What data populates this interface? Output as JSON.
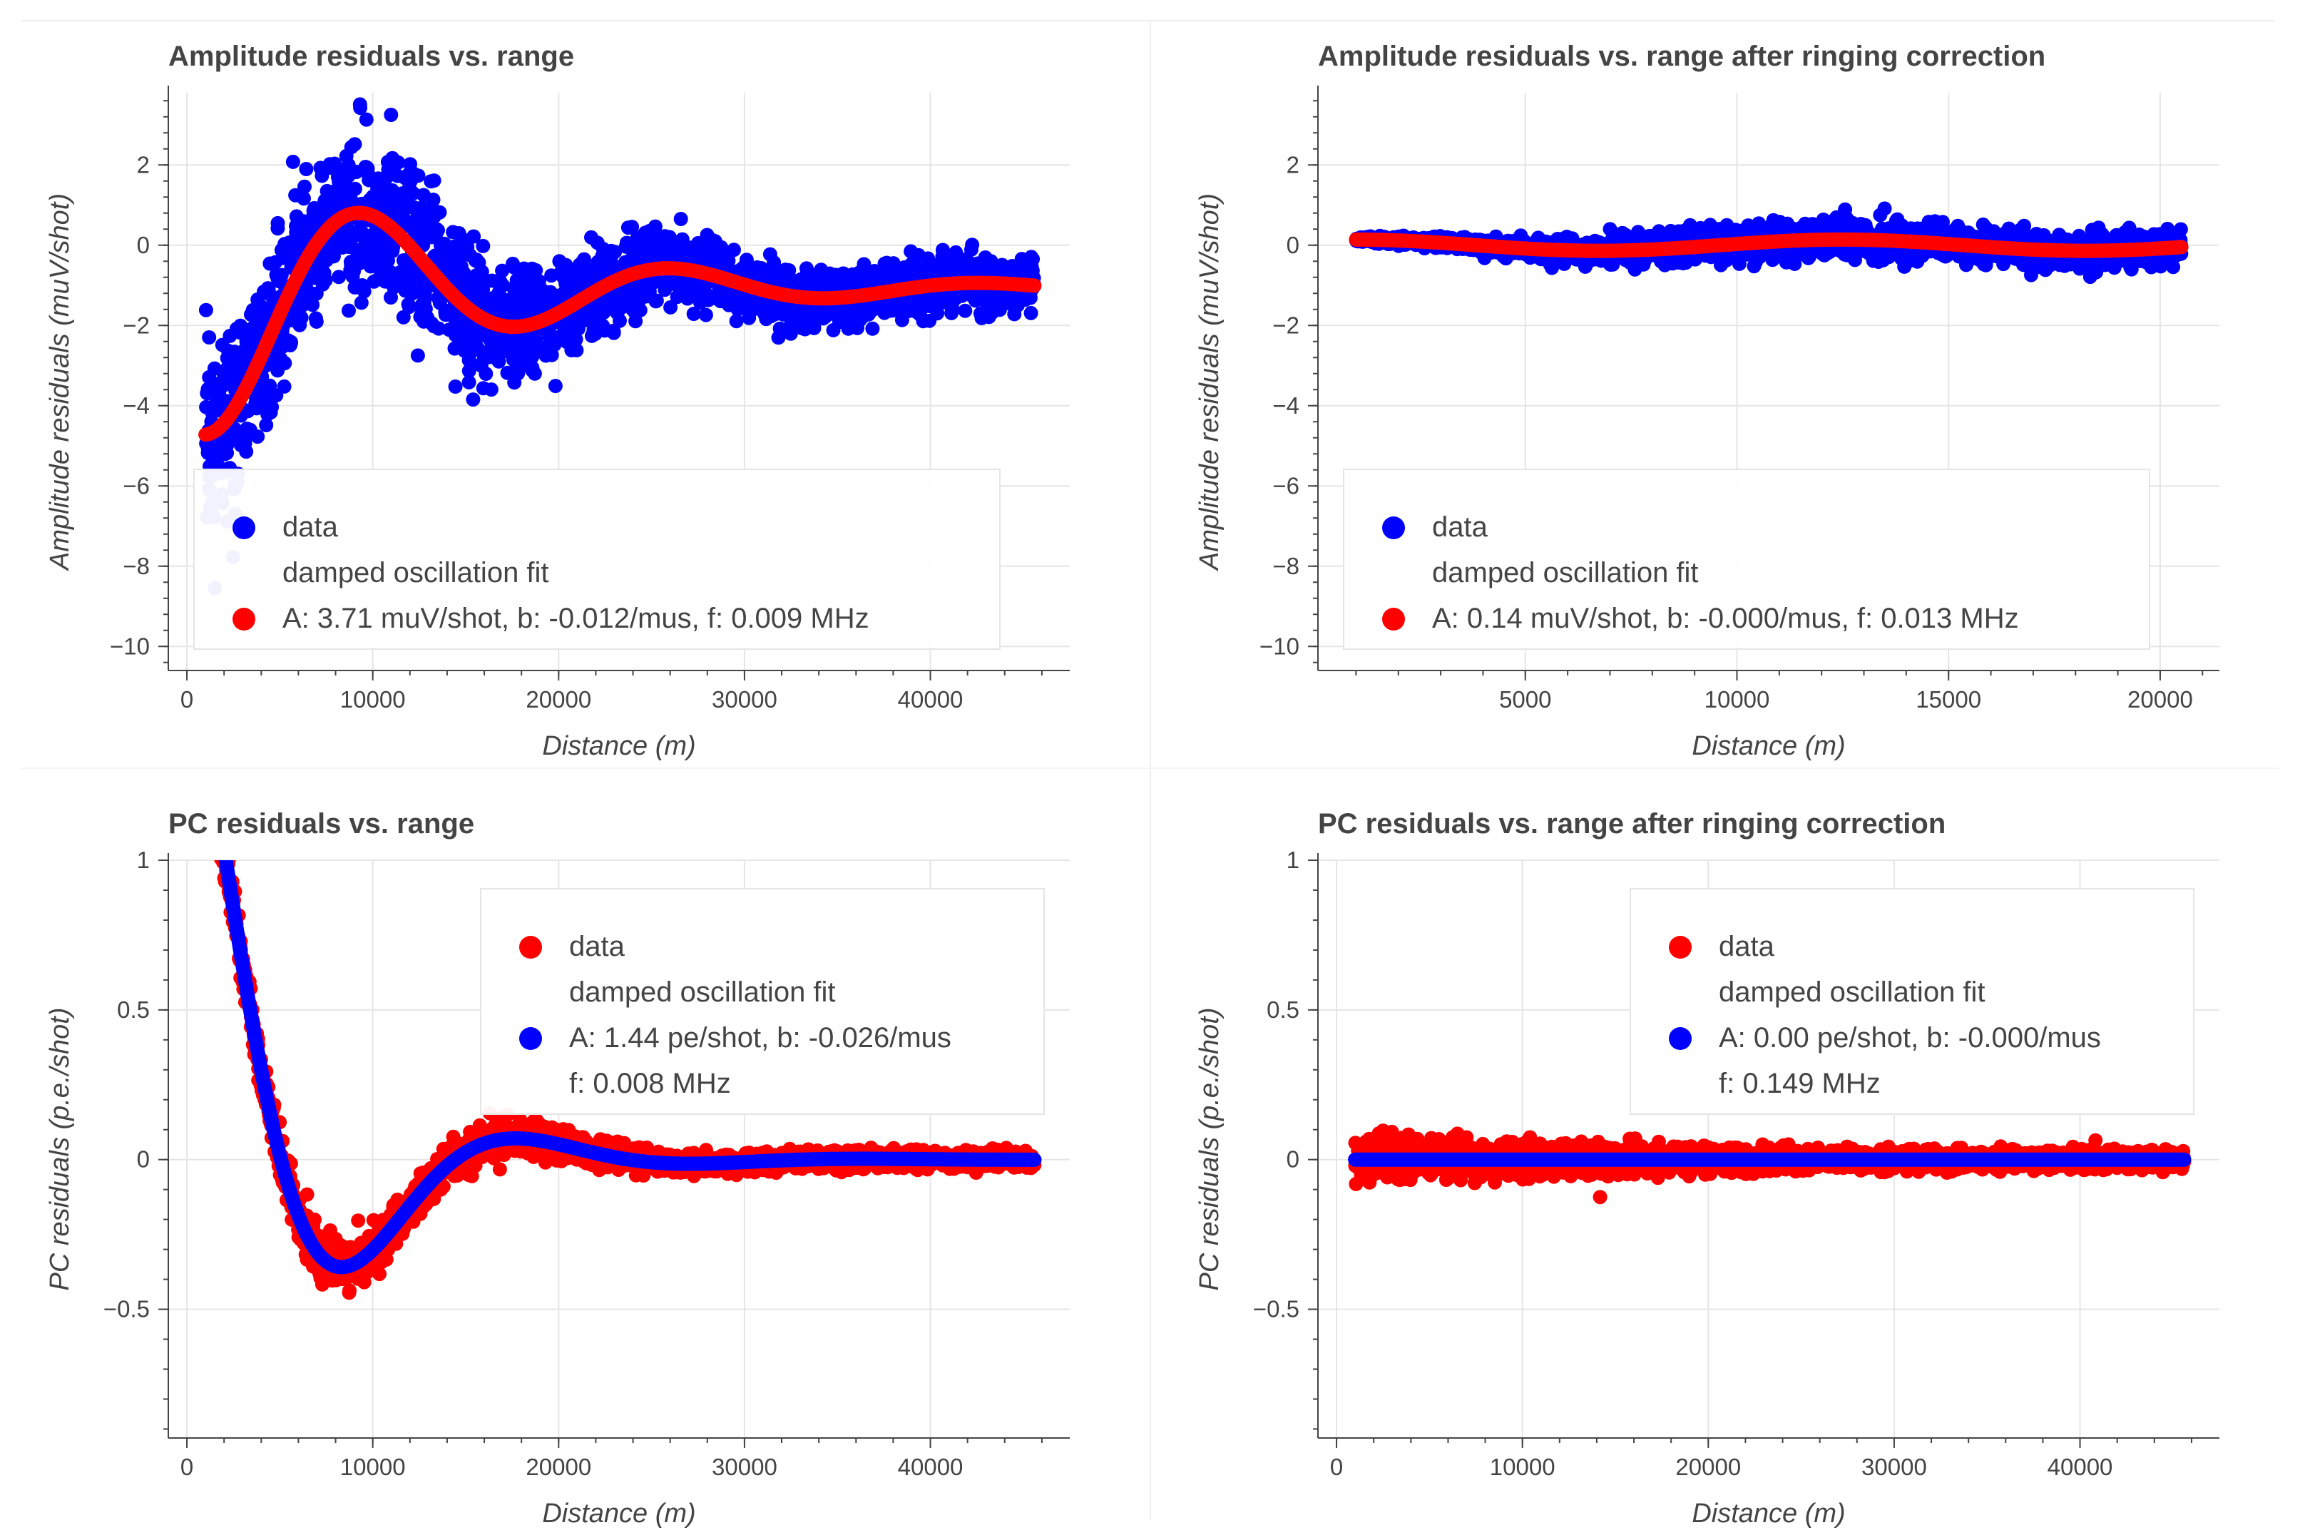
{
  "chart_data": [
    {
      "type": "scatter",
      "title": "Amplitude residuals vs. range",
      "xlabel": "Distance (m)",
      "ylabel": "Amplitude residuals (muV/shot)",
      "xlim": [
        -1000,
        47500
      ],
      "ylim": [
        -10.6,
        3.8
      ],
      "xticks": [
        0,
        10000,
        20000,
        30000,
        40000
      ],
      "xticklabels": [
        "0",
        "10000",
        "20000",
        "30000",
        "40000"
      ],
      "yticks": [
        -10,
        -8,
        -6,
        -4,
        -2,
        0,
        2
      ],
      "yticklabels": [
        "−10",
        "−8",
        "−6",
        "−4",
        "−2",
        "0",
        "2"
      ],
      "x_range": [
        1000,
        45600
      ],
      "fit": {
        "A": 3.71,
        "b_per_us": -0.012,
        "f_MHz": 0.009,
        "offset": -1.07,
        "phase": -1.75,
        "offset_m": 1000
      },
      "noise": {
        "near": 1.9,
        "far": 0.55
      },
      "scatter_color": "#0000ff",
      "fit_color": "#ff0000",
      "legend": {
        "position": "bottom-left",
        "entries": [
          {
            "marker_color": "#0000ff",
            "lines": [
              "data"
            ]
          },
          {
            "marker_color": "#ff0000",
            "lines": [
              "damped oscillation fit",
              " A: 3.71 muV/shot, b: -0.012/mus, f: 0.009 MHz"
            ]
          }
        ]
      }
    },
    {
      "type": "scatter",
      "title": "Amplitude residuals vs. range after ringing correction",
      "xlabel": "Distance (m)",
      "ylabel": "Amplitude residuals (muV/shot)",
      "xlim": [
        100,
        21400
      ],
      "ylim": [
        -10.6,
        3.8
      ],
      "xticks": [
        5000,
        10000,
        15000,
        20000
      ],
      "xticklabels": [
        "5000",
        "10000",
        "15000",
        "20000"
      ],
      "yticks": [
        -10,
        -8,
        -6,
        -4,
        -2,
        0,
        2
      ],
      "yticklabels": [
        "−10",
        "−8",
        "−6",
        "−4",
        "−2",
        "0",
        "2"
      ],
      "x_range": [
        1000,
        20500
      ],
      "fit": {
        "A": 0.14,
        "b_per_us": 0.0,
        "f_MHz": 0.013,
        "offset": 0.0,
        "phase": 1.6,
        "offset_m": 1000
      },
      "noise": {
        "near": 0.05,
        "far": 0.5
      },
      "scatter_color": "#0000ff",
      "fit_color": "#ff0000",
      "legend": {
        "position": "bottom-left",
        "entries": [
          {
            "marker_color": "#0000ff",
            "lines": [
              "data"
            ]
          },
          {
            "marker_color": "#ff0000",
            "lines": [
              "damped oscillation fit",
              " A: 0.14 muV/shot, b: -0.000/mus, f: 0.013 MHz"
            ]
          }
        ]
      }
    },
    {
      "type": "scatter",
      "title": "PC residuals vs. range",
      "xlabel": "Distance (m)",
      "ylabel": "PC residuals (p.e./shot)",
      "xlim": [
        -1000,
        47500
      ],
      "ylim": [
        -0.93,
        1.0
      ],
      "xticks": [
        0,
        10000,
        20000,
        30000,
        40000
      ],
      "xticklabels": [
        "0",
        "10000",
        "20000",
        "30000",
        "40000"
      ],
      "yticks": [
        -0.5,
        0,
        0.5,
        1
      ],
      "yticklabels": [
        "−0.5",
        "0",
        "0.5",
        "1"
      ],
      "x_range": [
        1000,
        45600
      ],
      "fit": {
        "A": 1.44,
        "b_per_us": -0.026,
        "f_MHz": 0.008,
        "offset": 0.0,
        "phase": 1.78,
        "offset_m": 1000
      },
      "noise": {
        "near": 0.08,
        "far": 0.025
      },
      "scatter_color": "#ff0000",
      "fit_color": "#0000ff",
      "legend": {
        "position": "top-right",
        "entries": [
          {
            "marker_color": "#ff0000",
            "lines": [
              "data"
            ]
          },
          {
            "marker_color": "#0000ff",
            "lines": [
              "damped oscillation fit",
              " A: 1.44 pe/shot, b: -0.026/mus",
              " f: 0.008 MHz"
            ]
          }
        ]
      }
    },
    {
      "type": "scatter",
      "title": "PC residuals vs. range after ringing correction",
      "xlabel": "Distance (m)",
      "ylabel": "PC residuals (p.e./shot)",
      "xlim": [
        -1000,
        47500
      ],
      "ylim": [
        -0.93,
        1.0
      ],
      "xticks": [
        0,
        10000,
        20000,
        30000,
        40000
      ],
      "xticklabels": [
        "0",
        "10000",
        "20000",
        "30000",
        "40000"
      ],
      "yticks": [
        -0.5,
        0,
        0.5,
        1
      ],
      "yticklabels": [
        "−0.5",
        "0",
        "0.5",
        "1"
      ],
      "x_range": [
        1000,
        45600
      ],
      "fit": {
        "A": 0.0,
        "b_per_us": 0.0,
        "f_MHz": 0.149,
        "offset": 0.0,
        "phase": 0.0,
        "offset_m": 1000
      },
      "noise": {
        "near": 0.06,
        "far": 0.025
      },
      "scatter_color": "#ff0000",
      "fit_color": "#0000ff",
      "legend": {
        "position": "top-right",
        "entries": [
          {
            "marker_color": "#ff0000",
            "lines": [
              "data"
            ]
          },
          {
            "marker_color": "#0000ff",
            "lines": [
              "damped oscillation fit",
              " A: 0.00 pe/shot, b: -0.000/mus",
              " f: 0.149 MHz"
            ]
          }
        ]
      }
    }
  ]
}
